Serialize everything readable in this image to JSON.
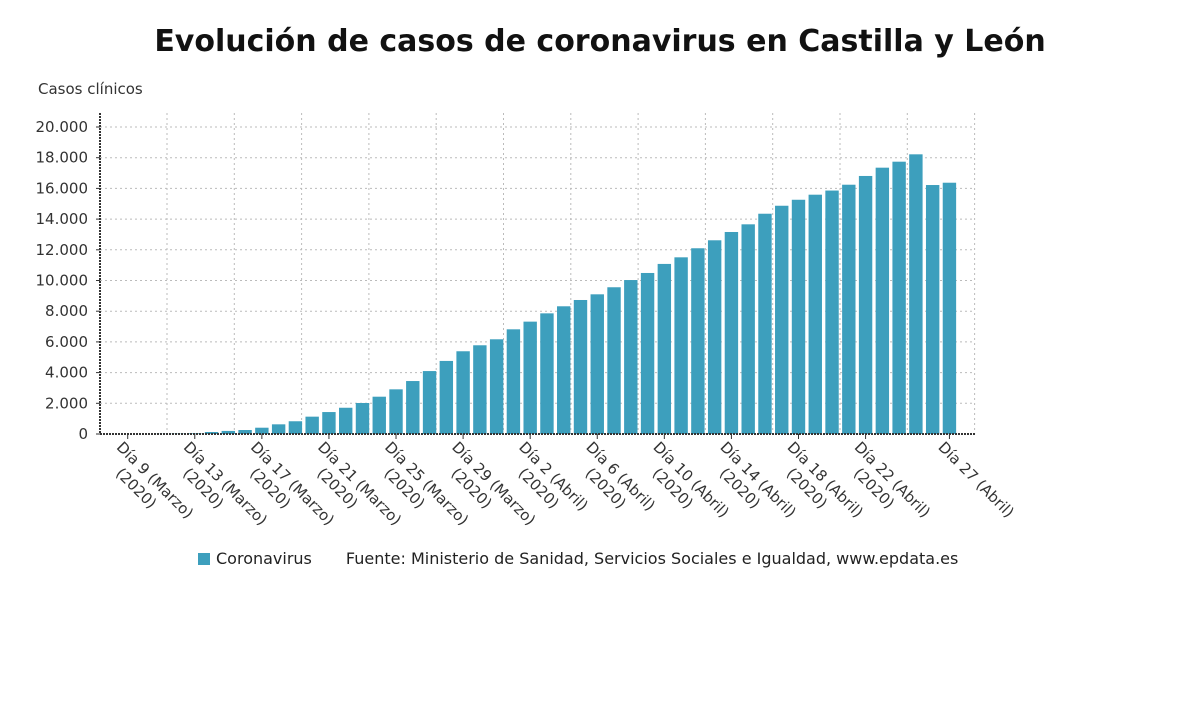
{
  "chart_data": {
    "type": "bar",
    "title": "Evolución de casos de coronavirus en Castilla y León",
    "ylabel": "Casos clínicos",
    "xlabel": "",
    "ylim": [
      0,
      20000
    ],
    "yticks": [
      "0",
      "2.000",
      "4.000",
      "6.000",
      "8.000",
      "10.000",
      "12.000",
      "14.000",
      "16.000",
      "18.000",
      "20.000"
    ],
    "grid": true,
    "legend_position": "bottom",
    "color": "#3d9fbd",
    "xtick_labels": [
      {
        "index": 0,
        "line1": "Día 9 (Marzo)",
        "line2": "(2020)"
      },
      {
        "index": 4,
        "line1": "Día 13 (Marzo)",
        "line2": "(2020)"
      },
      {
        "index": 8,
        "line1": "Día 17 (Marzo)",
        "line2": "(2020)"
      },
      {
        "index": 12,
        "line1": "Día 21 (Marzo)",
        "line2": "(2020)"
      },
      {
        "index": 16,
        "line1": "Día 25 (Marzo)",
        "line2": "(2020)"
      },
      {
        "index": 20,
        "line1": "Día 29 (Marzo)",
        "line2": "(2020)"
      },
      {
        "index": 24,
        "line1": "Día 2 (Abril)",
        "line2": "(2020)"
      },
      {
        "index": 28,
        "line1": "Día 6 (Abril)",
        "line2": "(2020)"
      },
      {
        "index": 32,
        "line1": "Día 10 (Abril)",
        "line2": "(2020)"
      },
      {
        "index": 36,
        "line1": "Día 14 (Abril)",
        "line2": "(2020)"
      },
      {
        "index": 40,
        "line1": "Día 18 (Abril)",
        "line2": "(2020)"
      },
      {
        "index": 44,
        "line1": "Día 22 (Abril)",
        "line2": "(2020)"
      },
      {
        "index": 49,
        "line1": "Día 27 (Abril)",
        "line2": ""
      }
    ],
    "series": [
      {
        "name": "Coronavirus",
        "values": [
          0,
          0,
          10,
          20,
          40,
          130,
          200,
          260,
          410,
          630,
          830,
          1130,
          1430,
          1710,
          2020,
          2430,
          2910,
          3450,
          4100,
          4760,
          5390,
          5780,
          6170,
          6820,
          7320,
          7860,
          8320,
          8730,
          9100,
          9560,
          10030,
          10490,
          11080,
          11510,
          12100,
          12620,
          13160,
          13660,
          14350,
          14870,
          15260,
          15590,
          15860,
          16240,
          16810,
          17350,
          17740,
          18220,
          16220,
          16370
        ]
      }
    ]
  },
  "legend": {
    "series_label": "Coronavirus"
  },
  "source": "Fuente: Ministerio de Sanidad, Servicios Sociales e Igualdad, www.epdata.es"
}
